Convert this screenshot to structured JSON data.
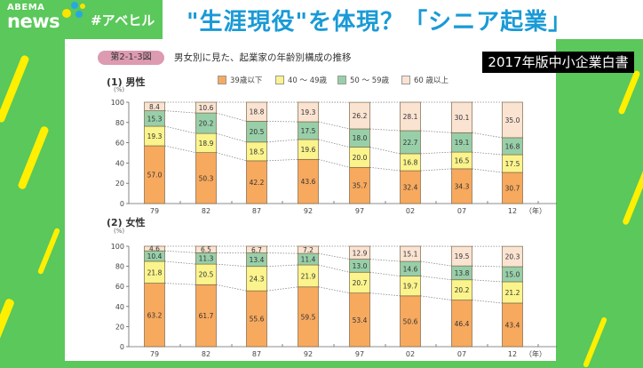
{
  "header": {
    "brand_top": "ABEMA",
    "brand_bottom": "news",
    "hashtag": "#アベヒル",
    "headline": "\"生涯現役\"を体現？「シニア起業」"
  },
  "source_label": "2017年版中小企業白書",
  "figure": {
    "badge": "第2-1-3図",
    "title": "男女別に見た、起業家の年齢別構成の推移"
  },
  "legend": [
    {
      "label": "39歳以下",
      "color": "#f7a95e"
    },
    {
      "label": "40 ～ 49歳",
      "color": "#fbf48c"
    },
    {
      "label": "50 ～ 59歳",
      "color": "#98cfa9"
    },
    {
      "label": "60 歳以上",
      "color": "#fbe3d2"
    }
  ],
  "male_section": {
    "title": "(1)  男性",
    "unit": "(%)"
  },
  "female_section": {
    "title": "(2)  女性",
    "unit": "(%)"
  },
  "year_suffix": "（年）",
  "chart_data": [
    {
      "type": "bar",
      "stacked": true,
      "title": "(1) 男性",
      "xlabel": "（年）",
      "ylabel": "(%)",
      "ylim": [
        0,
        100
      ],
      "yticks": [
        0,
        20,
        40,
        60,
        80,
        100
      ],
      "categories": [
        "79",
        "82",
        "87",
        "92",
        "97",
        "02",
        "07",
        "12"
      ],
      "series": [
        {
          "name": "39歳以下",
          "values": [
            57.0,
            50.3,
            42.2,
            43.6,
            35.7,
            32.4,
            34.3,
            30.7
          ]
        },
        {
          "name": "40 ～ 49歳",
          "values": [
            19.3,
            18.9,
            18.5,
            19.6,
            20.0,
            16.8,
            16.5,
            17.5
          ]
        },
        {
          "name": "50 ～ 59歳",
          "values": [
            15.3,
            20.2,
            20.5,
            17.5,
            18.0,
            22.7,
            19.1,
            16.8
          ]
        },
        {
          "name": "60 歳以上",
          "values": [
            8.4,
            10.6,
            18.8,
            19.3,
            26.2,
            28.1,
            30.1,
            35.0
          ]
        }
      ]
    },
    {
      "type": "bar",
      "stacked": true,
      "title": "(2) 女性",
      "xlabel": "（年）",
      "ylabel": "(%)",
      "ylim": [
        0,
        100
      ],
      "yticks": [
        0,
        20,
        40,
        60,
        80,
        100
      ],
      "categories": [
        "79",
        "82",
        "87",
        "92",
        "97",
        "02",
        "07",
        "12"
      ],
      "series": [
        {
          "name": "39歳以下",
          "values": [
            63.2,
            61.7,
            55.6,
            59.5,
            53.4,
            50.6,
            46.4,
            43.4
          ]
        },
        {
          "name": "40 ～ 49歳",
          "values": [
            21.8,
            20.5,
            24.3,
            21.9,
            20.7,
            19.7,
            20.2,
            21.2
          ]
        },
        {
          "name": "50 ～ 59歳",
          "values": [
            10.4,
            11.3,
            13.4,
            11.4,
            13.0,
            14.6,
            13.8,
            15.0
          ]
        },
        {
          "name": "60 歳以上",
          "values": [
            4.6,
            6.5,
            6.7,
            7.2,
            12.9,
            15.1,
            19.5,
            20.3
          ]
        }
      ]
    }
  ]
}
